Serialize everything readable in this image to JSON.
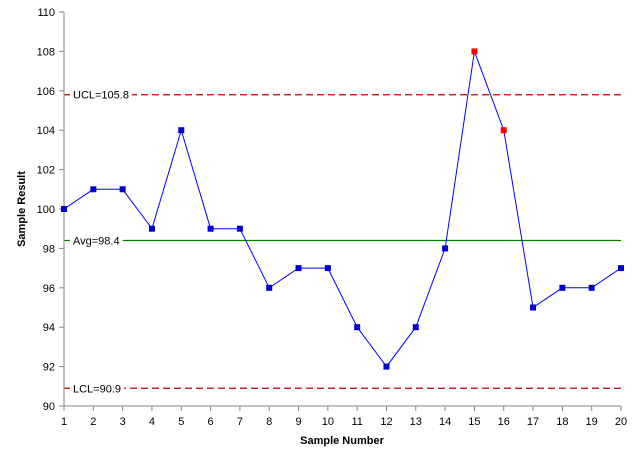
{
  "chart_data": {
    "type": "line",
    "xlabel": "Sample Number",
    "ylabel": "Sample Result",
    "x": [
      1,
      2,
      3,
      4,
      5,
      6,
      7,
      8,
      9,
      10,
      11,
      12,
      13,
      14,
      15,
      16,
      17,
      18,
      19,
      20
    ],
    "ylim": [
      90,
      110
    ],
    "xlim": [
      1,
      20
    ],
    "y_ticks": [
      90,
      92,
      94,
      96,
      98,
      100,
      102,
      104,
      106,
      108,
      110
    ],
    "grid": false,
    "series": [
      {
        "values": [
          100,
          101,
          101,
          99,
          104,
          99,
          99,
          96,
          97,
          97,
          94,
          92,
          94,
          98,
          108,
          104,
          95,
          96,
          96,
          97
        ],
        "line_color": "#0000ff",
        "marker_color": "#0000cc",
        "out_of_control_points": [
          15,
          16
        ],
        "out_of_control_color": "#ff0000"
      }
    ],
    "reference_lines": [
      {
        "label": "UCL=105.8",
        "value": 105.8,
        "color": "#c00000",
        "style": "dashed"
      },
      {
        "label": "Avg=98.4",
        "value": 98.4,
        "color": "#008000",
        "style": "solid"
      },
      {
        "label": "LCL=90.9",
        "value": 90.9,
        "color": "#c00000",
        "style": "dashed"
      }
    ]
  }
}
